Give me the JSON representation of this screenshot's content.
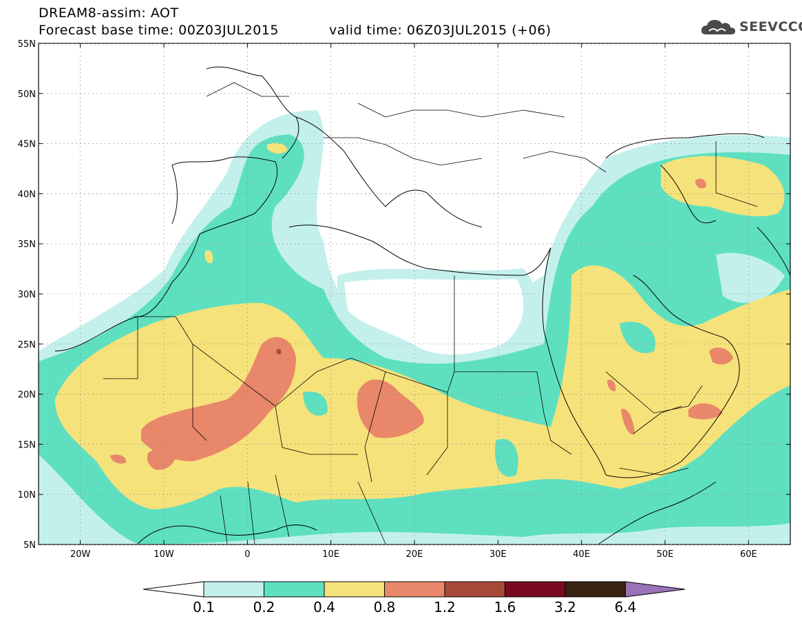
{
  "title": {
    "line1": "DREAM8-assim: AOT",
    "base": "Forecast base time: 00Z03JUL2015",
    "valid": "valid time: 06Z03JUL2015 (+06)"
  },
  "logo": {
    "text": "SEEVCCC",
    "icon": "cloud-icon"
  },
  "map": {
    "lat_labels": [
      "55N",
      "50N",
      "45N",
      "40N",
      "35N",
      "30N",
      "25N",
      "20N",
      "15N",
      "10N",
      "5N"
    ],
    "lon_labels": [
      "20W",
      "10W",
      "0",
      "10E",
      "20E",
      "30E",
      "40E",
      "50E",
      "60E"
    ],
    "lat_range": [
      5,
      55
    ],
    "lon_range": [
      -25,
      65
    ]
  },
  "colorbar": {
    "labels": [
      "0.1",
      "0.2",
      "0.4",
      "0.8",
      "1.2",
      "1.6",
      "3.2",
      "6.4"
    ],
    "colors": [
      "#c4f0ec",
      "#5ee0c0",
      "#f6e27a",
      "#e8876a",
      "#a84a3a",
      "#7a0a22",
      "#3a2414",
      "#9a72b8"
    ]
  },
  "chart_data": {
    "type": "heatmap",
    "title": "DREAM8-assim: AOT",
    "field": "AOT",
    "levels": [
      0.1,
      0.2,
      0.4,
      0.8,
      1.2,
      1.6,
      3.2,
      6.4
    ],
    "xlim": [
      -25,
      65
    ],
    "ylim": [
      5,
      55
    ]
  }
}
